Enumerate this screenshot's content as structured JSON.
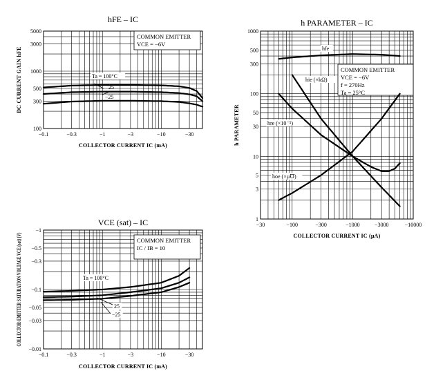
{
  "chart_data": [
    {
      "id": "hfe",
      "type": "line",
      "title": "hFE – IC",
      "xlabel": "COLLECTOR CURRENT  IC  (mA)",
      "ylabel": "DC CURRENT GAIN  hFE",
      "x_scale": "log",
      "y_scale": "log",
      "xlim": [
        0.1,
        50
      ],
      "ylim": [
        100,
        5000
      ],
      "x_ticks": [
        {
          "v": 0.1,
          "t": "−0.1"
        },
        {
          "v": 0.3,
          "t": "−0.3"
        },
        {
          "v": 1,
          "t": "−1"
        },
        {
          "v": 3,
          "t": "−3"
        },
        {
          "v": 10,
          "t": "−10"
        },
        {
          "v": 30,
          "t": "−30"
        }
      ],
      "y_ticks": [
        {
          "v": 100,
          "t": "100"
        },
        {
          "v": 300,
          "t": "300"
        },
        {
          "v": 500,
          "t": "500"
        },
        {
          "v": 1000,
          "t": "1000"
        },
        {
          "v": 3000,
          "t": "3000"
        },
        {
          "v": 5000,
          "t": "5000"
        }
      ],
      "x_grid": [
        0.1,
        0.2,
        0.3,
        0.4,
        0.5,
        0.6,
        0.7,
        0.8,
        0.9,
        1,
        2,
        3,
        4,
        5,
        6,
        7,
        8,
        9,
        10,
        20,
        30,
        40,
        50
      ],
      "y_grid": [
        100,
        200,
        300,
        400,
        500,
        600,
        700,
        800,
        900,
        1000,
        2000,
        3000,
        4000,
        5000
      ],
      "annotation": [
        "COMMON EMITTER",
        "VCE = −6V"
      ],
      "series": [
        {
          "name": "Ta = 100°C",
          "x": [
            0.1,
            0.3,
            1,
            3,
            10,
            20,
            30,
            40,
            50
          ],
          "y": [
            520,
            560,
            575,
            575,
            565,
            545,
            510,
            450,
            340
          ]
        },
        {
          "name": "25",
          "x": [
            0.1,
            0.3,
            1,
            3,
            10,
            20,
            30,
            40,
            50
          ],
          "y": [
            400,
            430,
            440,
            440,
            430,
            415,
            395,
            365,
            300
          ]
        },
        {
          "name": "−25",
          "x": [
            0.1,
            0.3,
            1,
            3,
            10,
            20,
            30,
            40,
            50
          ],
          "y": [
            270,
            295,
            305,
            305,
            300,
            290,
            275,
            260,
            240
          ]
        }
      ]
    },
    {
      "id": "hparam",
      "type": "line",
      "title": "h PARAMETER – IC",
      "xlabel": "COLLECTOR CURRENT  IC  (µA)",
      "ylabel": "h PARAMETER",
      "x_scale": "log",
      "y_scale": "log",
      "xlim": [
        30,
        10000
      ],
      "ylim": [
        1,
        1000
      ],
      "x_ticks": [
        {
          "v": 30,
          "t": "−30"
        },
        {
          "v": 100,
          "t": "−100"
        },
        {
          "v": 300,
          "t": "−300"
        },
        {
          "v": 1000,
          "t": "−1000"
        },
        {
          "v": 3000,
          "t": "−3000"
        },
        {
          "v": 10000,
          "t": "−10000"
        }
      ],
      "y_ticks": [
        {
          "v": 1,
          "t": "1"
        },
        {
          "v": 3,
          "t": "3"
        },
        {
          "v": 5,
          "t": "5"
        },
        {
          "v": 10,
          "t": "10"
        },
        {
          "v": 30,
          "t": "30"
        },
        {
          "v": 50,
          "t": "50"
        },
        {
          "v": 100,
          "t": "100"
        },
        {
          "v": 300,
          "t": "300"
        },
        {
          "v": 500,
          "t": "500"
        },
        {
          "v": 1000,
          "t": "1000"
        }
      ],
      "x_grid": [
        30,
        40,
        50,
        60,
        70,
        80,
        90,
        100,
        200,
        300,
        400,
        500,
        600,
        700,
        800,
        900,
        1000,
        2000,
        3000,
        4000,
        5000,
        6000,
        7000,
        8000,
        9000,
        10000
      ],
      "y_grid": [
        1,
        2,
        3,
        4,
        5,
        6,
        7,
        8,
        9,
        10,
        20,
        30,
        40,
        50,
        60,
        70,
        80,
        90,
        100,
        200,
        300,
        400,
        500,
        600,
        700,
        800,
        900,
        1000
      ],
      "annotation": [
        "COMMON EMITTER",
        "VCE = −6V",
        "f = 270Hz",
        "Ta = 25°C"
      ],
      "series": [
        {
          "name": "hfe",
          "x": [
            60,
            100,
            300,
            1000,
            3000,
            6000
          ],
          "y": [
            360,
            380,
            410,
            430,
            420,
            400
          ]
        },
        {
          "name": "hie (×kΩ)",
          "x": [
            100,
            300,
            1000,
            3000,
            6000
          ],
          "y": [
            200,
            40,
            10,
            3.2,
            1.6
          ]
        },
        {
          "name": "hre (×10⁻⁵)",
          "x": [
            60,
            100,
            300,
            1000,
            2000,
            3000,
            4000,
            5000,
            6000
          ],
          "y": [
            100,
            58,
            22,
            10,
            6.8,
            5.8,
            5.8,
            6.4,
            7.8
          ]
        },
        {
          "name": "hoe (×µ℧)",
          "x": [
            60,
            100,
            300,
            1000,
            3000,
            6000
          ],
          "y": [
            2,
            2.6,
            5,
            12,
            40,
            100
          ]
        }
      ]
    },
    {
      "id": "vcesat",
      "type": "line",
      "title": "VCE (sat) – IC",
      "xlabel": "COLLECTOR CURRENT  IC  (mA)",
      "ylabel": "COLLECTOR-EMITTER SATURATION VOLTAGE  VCE (sat)  (V)",
      "x_scale": "log",
      "y_scale": "log",
      "xlim": [
        0.1,
        50
      ],
      "ylim": [
        0.01,
        1
      ],
      "x_ticks": [
        {
          "v": 0.1,
          "t": "−0.1"
        },
        {
          "v": 0.3,
          "t": "−0.3"
        },
        {
          "v": 1,
          "t": "−1"
        },
        {
          "v": 3,
          "t": "−3"
        },
        {
          "v": 10,
          "t": "−10"
        },
        {
          "v": 30,
          "t": "−30"
        }
      ],
      "y_ticks": [
        {
          "v": 0.01,
          "t": "−0.01"
        },
        {
          "v": 0.03,
          "t": "−0.03"
        },
        {
          "v": 0.05,
          "t": "−0.05"
        },
        {
          "v": 0.1,
          "t": "−0.1"
        },
        {
          "v": 0.3,
          "t": "−0.3"
        },
        {
          "v": 0.5,
          "t": "−0.5"
        },
        {
          "v": 1,
          "t": "−1"
        }
      ],
      "x_grid": [
        0.1,
        0.2,
        0.3,
        0.4,
        0.5,
        0.6,
        0.7,
        0.8,
        0.9,
        1,
        2,
        3,
        4,
        5,
        6,
        7,
        8,
        9,
        10,
        20,
        30,
        40,
        50
      ],
      "y_grid": [
        0.01,
        0.02,
        0.03,
        0.04,
        0.05,
        0.06,
        0.07,
        0.08,
        0.09,
        0.1,
        0.2,
        0.3,
        0.4,
        0.5,
        0.6,
        0.7,
        0.8,
        0.9,
        1
      ],
      "annotation": [
        "COMMON EMITTER",
        "IC / IB = 10"
      ],
      "series": [
        {
          "name": "Ta = 100°C",
          "x": [
            0.1,
            0.3,
            1,
            3,
            10,
            20,
            30
          ],
          "y": [
            0.092,
            0.095,
            0.1,
            0.11,
            0.13,
            0.17,
            0.23
          ]
        },
        {
          "name": "25",
          "x": [
            0.1,
            0.3,
            1,
            3,
            10,
            20,
            30
          ],
          "y": [
            0.074,
            0.076,
            0.08,
            0.09,
            0.105,
            0.13,
            0.16
          ]
        },
        {
          "name": "−25",
          "x": [
            0.1,
            0.3,
            1,
            3,
            10,
            20,
            30
          ],
          "y": [
            0.066,
            0.067,
            0.07,
            0.078,
            0.09,
            0.11,
            0.13
          ]
        }
      ]
    }
  ],
  "labels": {
    "hfe_curve_labels": [
      "Ta = 100°C",
      "25",
      "−25"
    ],
    "hparam_curve_labels": [
      "hfe",
      "hie (×kΩ)",
      "hre (×10⁻⁵)",
      "hoe (×µ℧)"
    ],
    "vcesat_curve_labels": [
      "Ta = 100°C",
      "25",
      "−25"
    ]
  }
}
